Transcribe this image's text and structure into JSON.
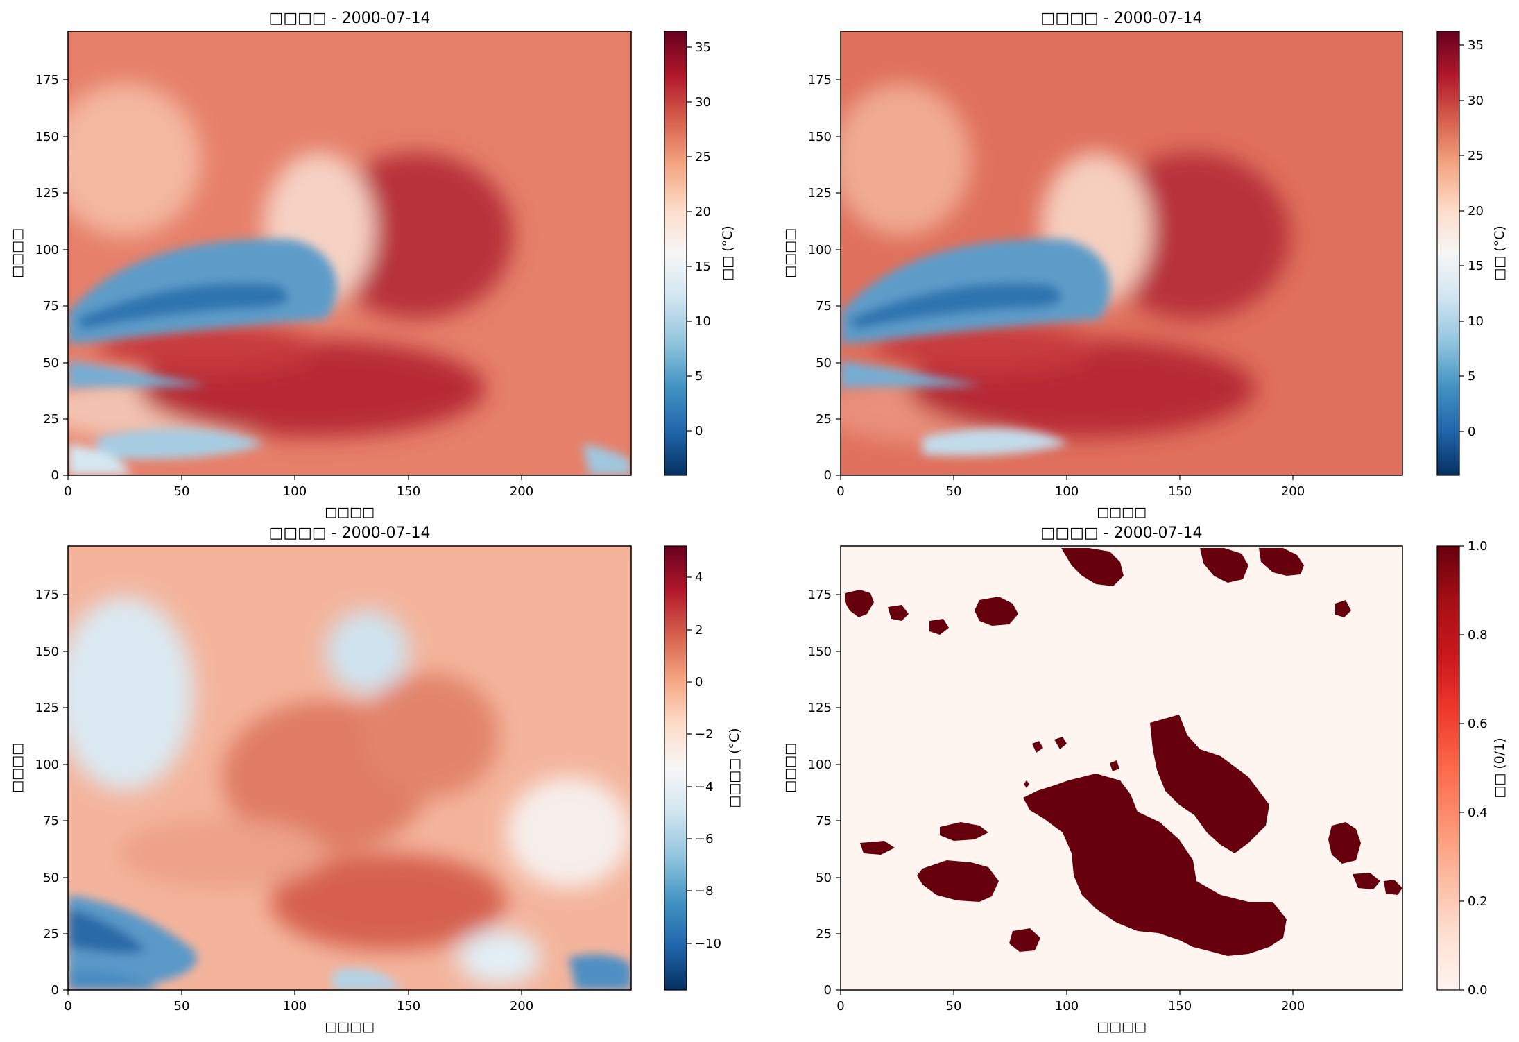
{
  "chart_data": [
    {
      "type": "heatmap",
      "title": "□□□□ - 2000-07-14",
      "xlabel": "□□□□",
      "ylabel": "□□□□",
      "xlim": [
        0,
        248
      ],
      "ylim": [
        0,
        196
      ],
      "xticks": [
        "0",
        "50",
        "100",
        "150",
        "200"
      ],
      "yticks": [
        "0",
        "25",
        "50",
        "75",
        "100",
        "125",
        "150",
        "175"
      ],
      "colormap": "RdBu_r",
      "colorbar": {
        "label": "□□ (°C)",
        "range": [
          -4,
          36.5
        ],
        "ticks": [
          "0",
          "5",
          "10",
          "15",
          "20",
          "25",
          "30",
          "35"
        ]
      },
      "grid": false
    },
    {
      "type": "heatmap",
      "title": "□□□□ - 2000-07-14",
      "xlabel": "□□□□",
      "ylabel": "□□□□",
      "xlim": [
        0,
        248
      ],
      "ylim": [
        0,
        196
      ],
      "xticks": [
        "0",
        "50",
        "100",
        "150",
        "200"
      ],
      "yticks": [
        "0",
        "25",
        "50",
        "75",
        "100",
        "125",
        "150",
        "175"
      ],
      "colormap": "RdBu_r",
      "colorbar": {
        "label": "□□ (°C)",
        "range": [
          -4,
          36.3
        ],
        "ticks": [
          "0",
          "5",
          "10",
          "15",
          "20",
          "25",
          "30",
          "35"
        ]
      },
      "grid": false
    },
    {
      "type": "heatmap",
      "title": "□□□□ - 2000-07-14",
      "xlabel": "□□□□",
      "ylabel": "□□□□",
      "xlim": [
        0,
        248
      ],
      "ylim": [
        0,
        196
      ],
      "xticks": [
        "0",
        "50",
        "100",
        "150",
        "200"
      ],
      "yticks": [
        "0",
        "25",
        "50",
        "75",
        "100",
        "125",
        "150",
        "175"
      ],
      "colormap": "RdBu_r",
      "colorbar": {
        "label": "□□□□ (°C)",
        "range": [
          -11.8,
          5.2
        ],
        "ticks": [
          "−10",
          "−8",
          "−6",
          "−4",
          "−2",
          "0",
          "2",
          "4"
        ]
      },
      "grid": false
    },
    {
      "type": "heatmap",
      "title": "□□□□ - 2000-07-14",
      "xlabel": "□□□□",
      "ylabel": "□□□□",
      "xlim": [
        0,
        248
      ],
      "ylim": [
        0,
        196
      ],
      "xticks": [
        "0",
        "50",
        "100",
        "150",
        "200"
      ],
      "yticks": [
        "0",
        "25",
        "50",
        "75",
        "100",
        "125",
        "150",
        "175"
      ],
      "colormap": "Reds",
      "colorbar": {
        "label": "□□ (0/1)",
        "range": [
          0,
          1
        ],
        "ticks": [
          "0.0",
          "0.2",
          "0.4",
          "0.6",
          "0.8",
          "1.0"
        ]
      },
      "grid": false
    }
  ]
}
